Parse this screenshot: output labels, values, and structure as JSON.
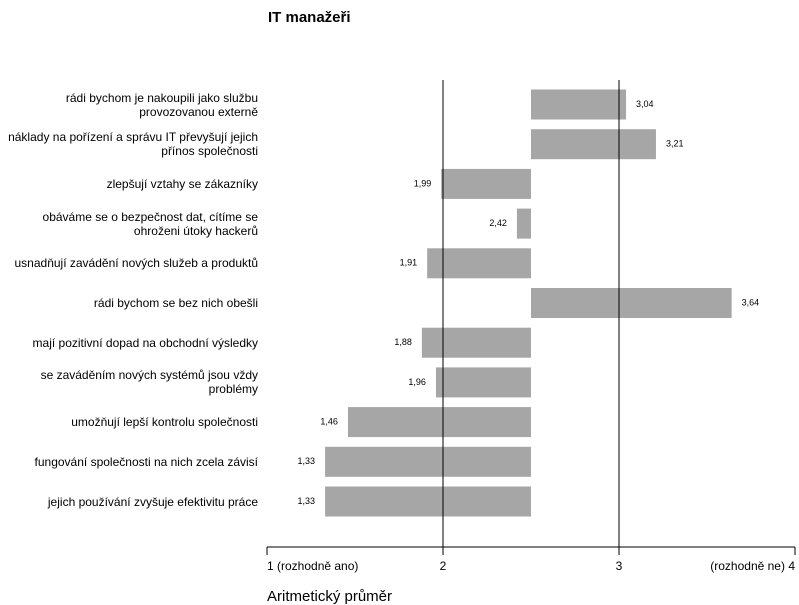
{
  "chart_data": {
    "type": "bar",
    "orientation": "horizontal",
    "title": "IT manažeři",
    "x_label": "Aritmetický průměr",
    "categories": [
      "rádi bychom je nakoupili jako službu provozovanou externě",
      "náklady na pořízení a správu IT převyšují jejich přínos společnosti",
      "zlepšují vztahy se zákazníky",
      "obáváme se o bezpečnost dat, cítíme se ohroženi útoky hackerů",
      "usnadňují zavádění nových služeb a produktů",
      "rádi bychom se bez nich obešli",
      "mají pozitivní dopad na obchodní výsledky",
      "se zaváděním nových systémů jsou vždy problémy",
      "umožňují lepší kontrolu společnosti",
      "fungování společnosti na nich zcela závisí",
      "jejich používání zvyšuje efektivitu práce"
    ],
    "values": [
      3.04,
      3.21,
      1.99,
      2.42,
      1.91,
      3.64,
      1.88,
      1.96,
      1.46,
      1.33,
      1.33
    ],
    "value_labels": [
      "3,04",
      "3,21",
      "1,99",
      "2,42",
      "1,91",
      "3,64",
      "1,88",
      "1,96",
      "1,46",
      "1,33",
      "1,33"
    ],
    "color": "#a6a6a6",
    "xlim": [
      1,
      4
    ],
    "xticks": [
      {
        "value": 1,
        "label": "1 (rozhodně ano)"
      },
      2,
      3,
      {
        "value": 4,
        "label": "(rozhodně ne) 4"
      }
    ],
    "grid": true
  }
}
